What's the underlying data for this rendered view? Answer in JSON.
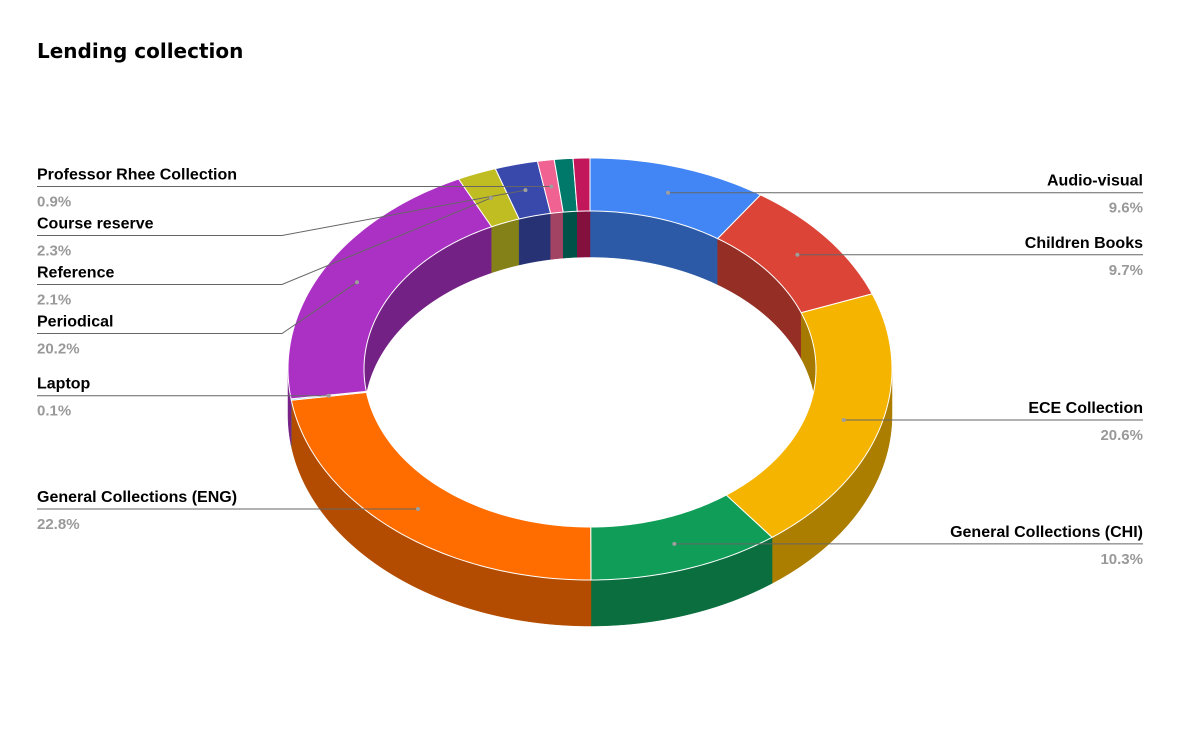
{
  "chart_data": {
    "type": "pie",
    "variant": "3d-donut",
    "title": "Lending collection",
    "start_category": "Audio-visual",
    "direction": "clockwise",
    "slices": [
      {
        "label": "Audio-visual",
        "percent_label": "9.6%",
        "value": 9.6,
        "color": "#4285f4"
      },
      {
        "label": "Children Books",
        "percent_label": "9.7%",
        "value": 9.7,
        "color": "#db4437"
      },
      {
        "label": "ECE Collection",
        "percent_label": "20.6%",
        "value": 20.6,
        "color": "#f4b400"
      },
      {
        "label": "General Collections (CHI)",
        "percent_label": "10.3%",
        "value": 10.3,
        "color": "#0f9d58"
      },
      {
        "label": "General Collections (ENG)",
        "percent_label": "22.8%",
        "value": 22.8,
        "color": "#ff6d00"
      },
      {
        "label": "Laptop",
        "percent_label": "0.1%",
        "value": 0.1,
        "color": "#46bdc6"
      },
      {
        "label": "Periodical",
        "percent_label": "20.2%",
        "value": 20.2,
        "color": "#ab30c4"
      },
      {
        "label": "Reference",
        "percent_label": "2.1%",
        "value": 2.1,
        "color": "#c0bd22"
      },
      {
        "label": "Course reserve",
        "percent_label": "2.3%",
        "value": 2.3,
        "color": "#3949ab"
      },
      {
        "label": "Professor Rhee Collection",
        "percent_label": "0.9%",
        "value": 0.9,
        "color": "#f06292"
      },
      {
        "label": "",
        "percent_label": "",
        "value": 1.0,
        "color": "#00796b"
      },
      {
        "label": "",
        "percent_label": "",
        "value": 0.9,
        "color": "#c2185b"
      }
    ],
    "legend": "none (labels beside slices)"
  }
}
